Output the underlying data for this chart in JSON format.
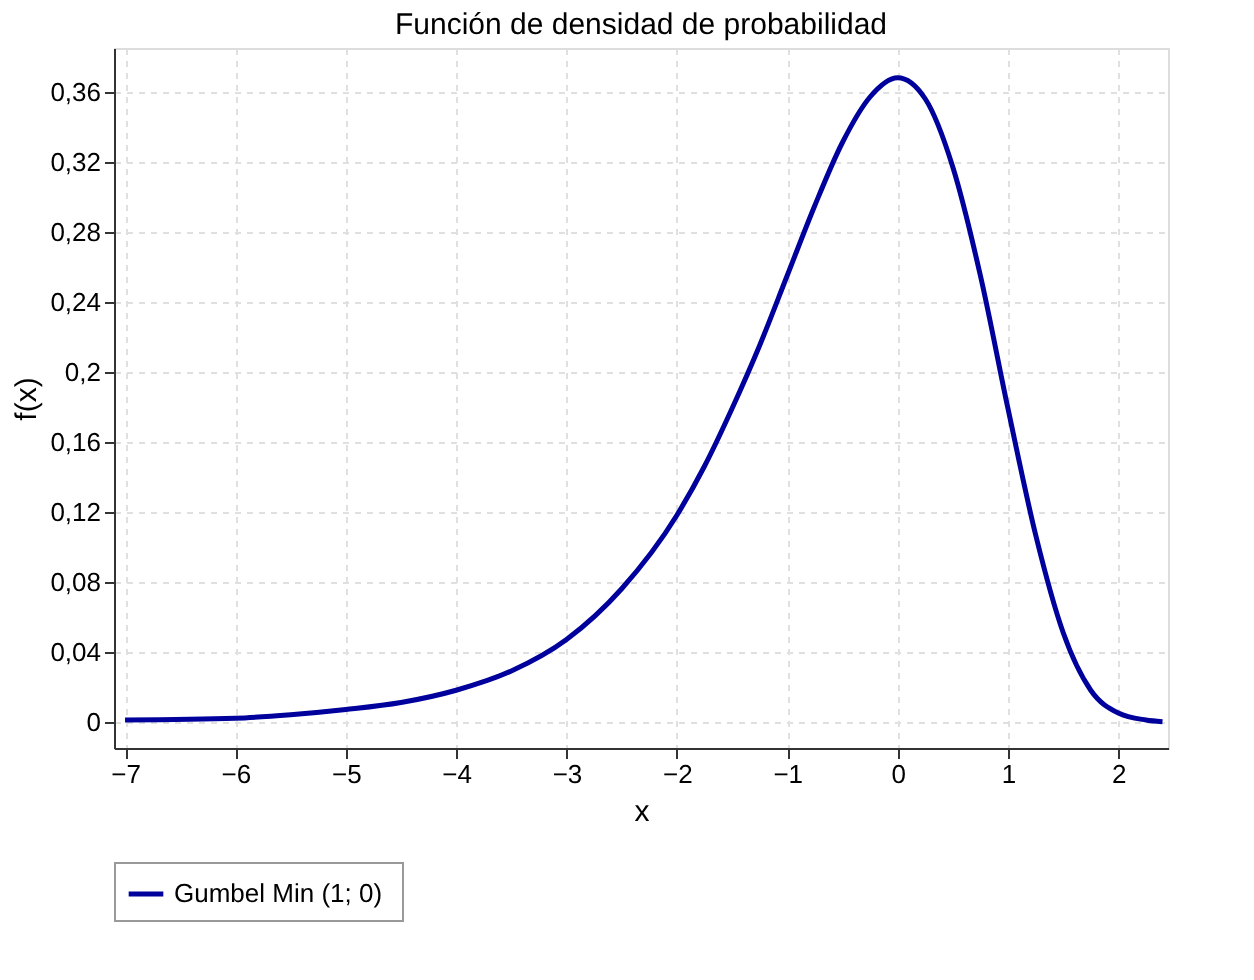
{
  "chart_data": {
    "type": "line",
    "title": "Función de densidad de probabilidad",
    "xlabel": "x",
    "ylabel": "f(x)",
    "xlim": [
      -7.1,
      2.45
    ],
    "xticks": [
      -7,
      -6,
      -5,
      -4,
      -3,
      -2,
      -1,
      0,
      1,
      2
    ],
    "ylim": [
      -0.015,
      0.385
    ],
    "yticks": [
      {
        "value": 0,
        "label": "0"
      },
      {
        "value": 0.04,
        "label": "0,04"
      },
      {
        "value": 0.08,
        "label": "0,08"
      },
      {
        "value": 0.12,
        "label": "0,12"
      },
      {
        "value": 0.16,
        "label": "0,16"
      },
      {
        "value": 0.2,
        "label": "0,2"
      },
      {
        "value": 0.24,
        "label": "0,24"
      },
      {
        "value": 0.28,
        "label": "0,28"
      },
      {
        "value": 0.32,
        "label": "0,32"
      },
      {
        "value": 0.36,
        "label": "0,36"
      }
    ],
    "grid": true,
    "legend": "bottom",
    "line_style": "solid",
    "series": [
      {
        "name": "Gumbel Min  (1; 0)",
        "color": "#00009c",
        "x": [
          -7,
          -6,
          -5.5,
          -5,
          -4.5,
          -4,
          -3.5,
          -3,
          -2.5,
          -2,
          -1.75,
          -1.5,
          -1.25,
          -1,
          -0.75,
          -0.5,
          -0.25,
          0,
          0.25,
          0.5,
          0.75,
          1,
          1.25,
          1.5,
          1.75,
          2,
          2.25,
          2.4
        ],
        "values": [
          0.001,
          0.002,
          0.004,
          0.007,
          0.011,
          0.018,
          0.029,
          0.047,
          0.076,
          0.118,
          0.146,
          0.179,
          0.215,
          0.255,
          0.295,
          0.331,
          0.357,
          0.368,
          0.356,
          0.317,
          0.255,
          0.179,
          0.107,
          0.051,
          0.018,
          0.005,
          0.001,
          0.0
        ]
      }
    ]
  }
}
